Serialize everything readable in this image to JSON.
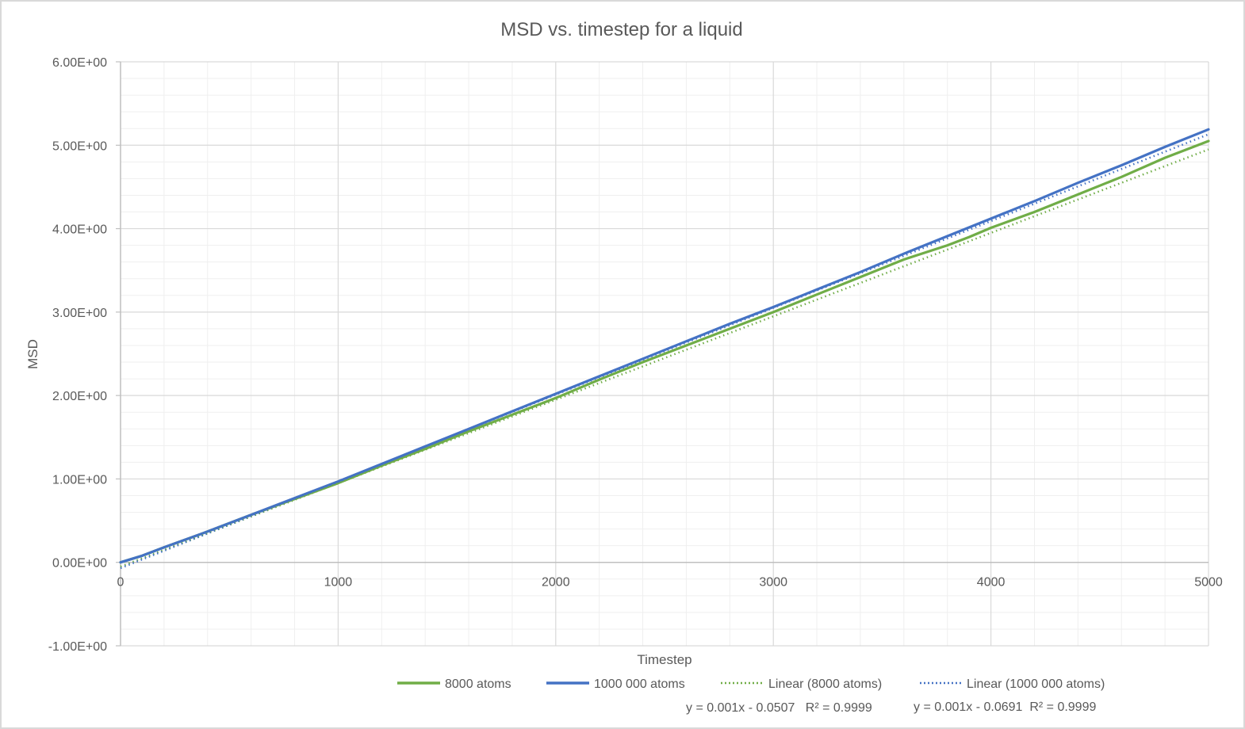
{
  "chart_data": {
    "type": "line",
    "title": "MSD vs. timestep for a liquid",
    "xlabel": "Timestep",
    "ylabel": "MSD",
    "xlim": [
      0,
      5000
    ],
    "ylim": [
      -1,
      6
    ],
    "x_ticks": [
      0,
      1000,
      2000,
      3000,
      4000,
      5000
    ],
    "x_tick_labels": [
      "0",
      "1000",
      "2000",
      "3000",
      "4000",
      "5000"
    ],
    "x_minor_step": 200,
    "y_ticks": [
      -1,
      0,
      1,
      2,
      3,
      4,
      5,
      6
    ],
    "y_tick_labels": [
      "-1.00E+00",
      "0.00E+00",
      "1.00E+00",
      "2.00E+00",
      "3.00E+00",
      "4.00E+00",
      "5.00E+00",
      "6.00E+00"
    ],
    "y_minor_step": 0.2,
    "grid": true,
    "legend_position": "bottom",
    "series": [
      {
        "name": "8000 atoms",
        "color": "#70ad47",
        "style": "solid",
        "x": [
          0,
          100,
          200,
          400,
          600,
          800,
          1000,
          1200,
          1400,
          1600,
          1800,
          2000,
          2200,
          2400,
          2600,
          2800,
          3000,
          3200,
          3400,
          3600,
          3800,
          3900,
          4000,
          4200,
          4400,
          4600,
          4800,
          5000
        ],
        "y": [
          0,
          0.08,
          0.18,
          0.37,
          0.57,
          0.76,
          0.95,
          1.16,
          1.36,
          1.57,
          1.77,
          1.97,
          2.19,
          2.4,
          2.6,
          2.8,
          3.0,
          3.21,
          3.42,
          3.63,
          3.8,
          3.9,
          4.01,
          4.2,
          4.41,
          4.62,
          4.85,
          5.05
        ]
      },
      {
        "name": "1000 000 atoms",
        "color": "#4472c4",
        "style": "solid",
        "x": [
          0,
          100,
          200,
          400,
          600,
          800,
          1000,
          1200,
          1400,
          1600,
          1800,
          2000,
          2200,
          2400,
          2600,
          2800,
          3000,
          3200,
          3400,
          3600,
          3800,
          4000,
          4200,
          4400,
          4600,
          4800,
          5000
        ],
        "y": [
          0,
          0.08,
          0.18,
          0.37,
          0.57,
          0.77,
          0.97,
          1.18,
          1.39,
          1.6,
          1.81,
          2.02,
          2.23,
          2.44,
          2.65,
          2.86,
          3.06,
          3.27,
          3.48,
          3.7,
          3.91,
          4.12,
          4.33,
          4.55,
          4.76,
          4.98,
          5.19
        ]
      },
      {
        "name": "Linear (8000 atoms)",
        "color": "#70ad47",
        "style": "dotted",
        "trendline": {
          "slope": 0.001,
          "intercept": -0.0507,
          "r2": 0.9999
        },
        "equation_label": "y = 0.001x - 0.0507   R² = 0.9999"
      },
      {
        "name": "Linear (1000 000 atoms)",
        "color": "#4472c4",
        "style": "dotted",
        "trendline": {
          "slope": 0.00104,
          "intercept": -0.0691,
          "r2": 0.9999
        },
        "equation_label": "y = 0.001x - 0.0691  R² = 0.9999"
      }
    ]
  }
}
